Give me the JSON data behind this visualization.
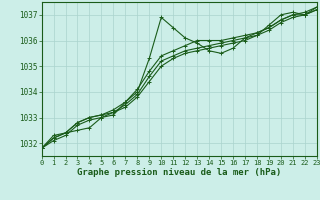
{
  "title": "Graphe pression niveau de la mer (hPa)",
  "background_color": "#cceee8",
  "grid_color": "#aad4ce",
  "line_color": "#1a5c1a",
  "xlim": [
    0,
    23
  ],
  "ylim": [
    1031.5,
    1037.5
  ],
  "xticks": [
    0,
    1,
    2,
    3,
    4,
    5,
    6,
    7,
    8,
    9,
    10,
    11,
    12,
    13,
    14,
    15,
    16,
    17,
    18,
    19,
    20,
    21,
    22,
    23
  ],
  "yticks": [
    1032,
    1033,
    1034,
    1035,
    1036,
    1037
  ],
  "series": [
    [
      1031.8,
      1032.3,
      1032.4,
      1032.5,
      1032.6,
      1033.0,
      1033.1,
      1033.6,
      1034.0,
      1035.3,
      1036.9,
      1036.5,
      1036.1,
      1035.9,
      1035.6,
      1035.5,
      1035.7,
      1036.1,
      1036.2,
      1036.6,
      1037.0,
      1037.1,
      1037.0,
      1037.3
    ],
    [
      1031.8,
      1032.2,
      1032.4,
      1032.8,
      1033.0,
      1033.1,
      1033.2,
      1033.5,
      1033.9,
      1034.6,
      1035.2,
      1035.4,
      1035.6,
      1035.7,
      1035.8,
      1035.9,
      1036.0,
      1036.1,
      1036.3,
      1036.5,
      1036.8,
      1037.0,
      1037.1,
      1037.3
    ],
    [
      1031.8,
      1032.1,
      1032.3,
      1032.7,
      1032.9,
      1033.0,
      1033.2,
      1033.4,
      1033.8,
      1034.4,
      1035.0,
      1035.3,
      1035.5,
      1035.6,
      1035.7,
      1035.8,
      1035.9,
      1036.0,
      1036.2,
      1036.4,
      1036.7,
      1036.9,
      1037.0,
      1037.2
    ],
    [
      1031.8,
      1032.2,
      1032.4,
      1032.8,
      1033.0,
      1033.1,
      1033.3,
      1033.6,
      1034.1,
      1034.8,
      1035.4,
      1035.6,
      1035.8,
      1036.0,
      1036.0,
      1036.0,
      1036.1,
      1036.2,
      1036.3,
      1036.5,
      1036.8,
      1037.0,
      1037.0,
      1037.2
    ]
  ]
}
